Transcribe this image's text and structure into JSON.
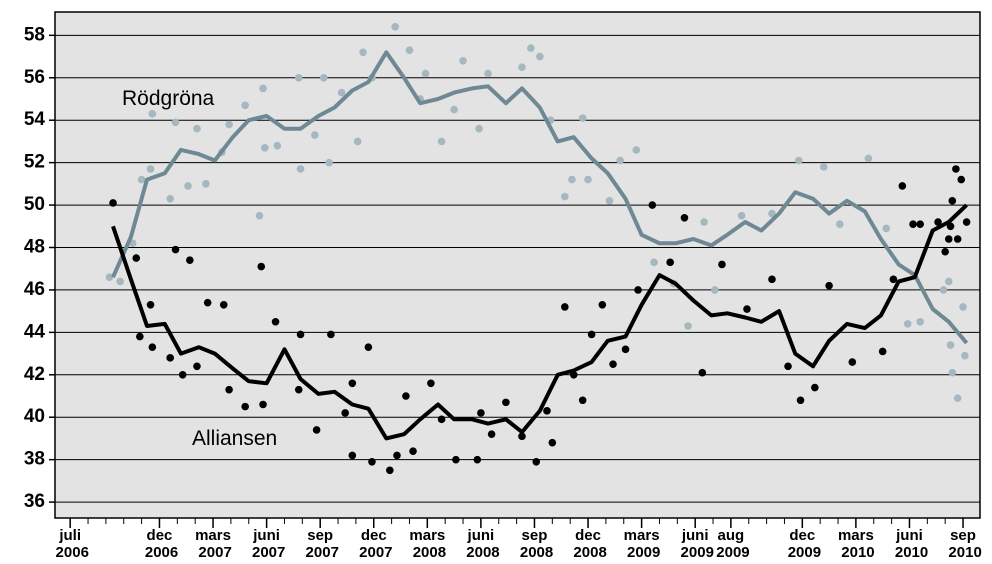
{
  "chart_data": {
    "type": "line",
    "xlim": [
      -0.85,
      50.95
    ],
    "ylim": [
      35.25,
      59.1
    ],
    "yticks": [
      36,
      38,
      40,
      42,
      44,
      46,
      48,
      50,
      52,
      54,
      56,
      58
    ],
    "xticks": [
      {
        "value": 0,
        "label": "juli 2006"
      },
      {
        "value": 5,
        "label": "dec 2006"
      },
      {
        "value": 8,
        "label": "mars 2007"
      },
      {
        "value": 11,
        "label": "juni 2007"
      },
      {
        "value": 14,
        "label": "sep 2007"
      },
      {
        "value": 17,
        "label": "dec 2007"
      },
      {
        "value": 20,
        "label": "mars 2008"
      },
      {
        "value": 23,
        "label": "juni 2008"
      },
      {
        "value": 26,
        "label": "sep 2008"
      },
      {
        "value": 29,
        "label": "dec 2008"
      },
      {
        "value": 32,
        "label": "mars 2009"
      },
      {
        "value": 35,
        "label": "juni 2009"
      },
      {
        "value": 37,
        "label": "aug 2009"
      },
      {
        "value": 41,
        "label": "dec 2009"
      },
      {
        "value": 44,
        "label": "mars 2010"
      },
      {
        "value": 47,
        "label": "juni 2010"
      },
      {
        "value": 50,
        "label": "sep 2010"
      }
    ],
    "grid": true,
    "series": [
      {
        "name": "Rödgröna",
        "color": "#6e8894",
        "x": [
          2.4,
          3.4,
          4.3,
          5.3,
          6.2,
          7.2,
          8.1,
          9.1,
          10.0,
          11.0,
          12.0,
          12.9,
          13.9,
          14.8,
          15.8,
          16.7,
          17.7,
          18.7,
          19.6,
          20.6,
          21.5,
          22.5,
          23.4,
          24.4,
          25.3,
          26.3,
          27.3,
          28.2,
          29.2,
          30.1,
          31.1,
          32.0,
          33.0,
          33.9,
          34.9,
          35.9,
          36.8,
          37.8,
          38.7,
          39.7,
          40.6,
          41.6,
          42.5,
          43.5,
          44.5,
          45.4,
          46.4,
          47.3,
          48.3,
          49.2,
          50.2
        ],
        "values": [
          46.6,
          48.5,
          51.2,
          51.5,
          52.6,
          52.4,
          52.1,
          53.2,
          54.0,
          54.2,
          53.6,
          53.6,
          54.2,
          54.6,
          55.4,
          55.8,
          57.2,
          56.0,
          54.8,
          55.0,
          55.3,
          55.5,
          55.6,
          54.8,
          55.5,
          54.6,
          53.0,
          53.2,
          52.2,
          51.5,
          50.3,
          48.6,
          48.2,
          48.2,
          48.4,
          48.1,
          48.6,
          49.2,
          48.8,
          49.6,
          50.6,
          50.3,
          49.6,
          50.2,
          49.7,
          48.4,
          47.2,
          46.7,
          45.1,
          44.5,
          43.5
        ],
        "points": {
          "color": "#a5b7bf",
          "x": [
            2.2,
            2.8,
            3.5,
            4.0,
            4.5,
            4.6,
            5.6,
            5.9,
            6.6,
            7.1,
            7.6,
            8.5,
            8.9,
            9.8,
            10.6,
            10.8,
            10.9,
            11.6,
            12.8,
            12.9,
            13.7,
            14.2,
            14.5,
            15.2,
            16.1,
            16.4,
            16.9,
            18.2,
            19.0,
            19.6,
            19.9,
            20.8,
            21.5,
            22.0,
            22.9,
            23.4,
            25.3,
            25.8,
            26.3,
            26.9,
            27.7,
            28.1,
            28.7,
            29.0,
            30.2,
            30.8,
            31.7,
            32.7,
            33.8,
            34.6,
            35.5,
            36.1,
            37.6,
            39.3,
            40.8,
            42.2,
            43.1,
            44.7,
            45.7,
            46.9,
            47.6,
            48.9,
            49.2,
            49.4,
            49.7,
            50.0,
            50.1,
            49.3
          ],
          "values": [
            46.6,
            46.4,
            48.2,
            51.2,
            51.7,
            54.3,
            50.3,
            53.9,
            50.9,
            53.6,
            51.0,
            52.5,
            53.8,
            54.7,
            49.5,
            55.5,
            52.7,
            52.8,
            56.0,
            51.7,
            53.3,
            56.0,
            52.0,
            55.3,
            53.0,
            57.2,
            56.0,
            58.4,
            57.3,
            55.0,
            56.2,
            53.0,
            54.5,
            56.8,
            53.6,
            56.2,
            56.5,
            57.4,
            57.0,
            54.0,
            50.4,
            51.2,
            54.1,
            51.2,
            50.2,
            52.1,
            52.6,
            47.3,
            46.3,
            44.3,
            49.2,
            46.0,
            49.5,
            49.6,
            52.1,
            51.8,
            49.1,
            52.2,
            48.9,
            44.4,
            44.5,
            46.0,
            46.4,
            42.1,
            40.9,
            45.2,
            42.9,
            43.4
          ]
        }
      },
      {
        "name": "Alliansen",
        "color": "#000000",
        "x": [
          2.4,
          3.4,
          4.3,
          5.3,
          6.2,
          7.2,
          8.1,
          9.1,
          10.0,
          11.0,
          12.0,
          12.9,
          13.9,
          14.8,
          15.8,
          16.7,
          17.7,
          18.7,
          19.6,
          20.6,
          21.5,
          22.5,
          23.4,
          24.4,
          25.3,
          26.3,
          27.3,
          28.2,
          29.2,
          30.1,
          31.1,
          32.0,
          33.0,
          33.9,
          34.9,
          35.9,
          36.8,
          37.8,
          38.7,
          39.7,
          40.6,
          41.6,
          42.5,
          43.5,
          44.5,
          45.4,
          46.4,
          47.3,
          48.3,
          49.2,
          50.2
        ],
        "values": [
          49.0,
          46.5,
          44.3,
          44.4,
          43.0,
          43.3,
          43.0,
          42.3,
          41.7,
          41.6,
          43.2,
          41.8,
          41.1,
          41.2,
          40.6,
          40.4,
          39.0,
          39.2,
          39.9,
          40.6,
          39.9,
          39.9,
          39.7,
          39.9,
          39.3,
          40.3,
          42.0,
          42.2,
          42.6,
          43.6,
          43.8,
          45.3,
          46.7,
          46.3,
          45.5,
          44.8,
          44.9,
          44.7,
          44.5,
          45.0,
          43.0,
          42.4,
          43.6,
          44.4,
          44.2,
          44.8,
          46.4,
          46.6,
          48.8,
          49.2,
          50.0
        ],
        "points": {
          "color": "#000000",
          "x": [
            2.4,
            3.7,
            3.9,
            4.5,
            4.6,
            5.6,
            5.9,
            6.3,
            6.7,
            7.1,
            7.7,
            8.6,
            8.9,
            9.8,
            10.7,
            10.8,
            11.5,
            12.8,
            12.9,
            13.8,
            14.6,
            15.4,
            15.8,
            16.7,
            15.8,
            16.9,
            17.9,
            18.3,
            18.8,
            19.2,
            20.2,
            20.8,
            21.6,
            22.8,
            23.0,
            23.6,
            24.4,
            25.3,
            26.1,
            26.7,
            27.0,
            27.7,
            28.2,
            28.7,
            29.2,
            29.8,
            30.4,
            31.1,
            31.8,
            32.6,
            33.6,
            34.4,
            35.4,
            36.5,
            37.9,
            39.3,
            40.2,
            40.9,
            41.7,
            42.5,
            43.8,
            45.5,
            46.1,
            46.6,
            47.2,
            47.6,
            48.6,
            49.0,
            49.3,
            49.6,
            49.7,
            49.9,
            50.2,
            49.4,
            49.2
          ],
          "values": [
            50.1,
            47.5,
            43.8,
            45.3,
            43.3,
            42.8,
            47.9,
            42.0,
            47.4,
            42.4,
            45.4,
            45.3,
            41.3,
            40.5,
            47.1,
            40.6,
            44.5,
            41.3,
            43.9,
            39.4,
            43.9,
            40.2,
            41.6,
            43.3,
            38.2,
            37.9,
            37.5,
            38.2,
            41.0,
            38.4,
            41.6,
            39.9,
            38.0,
            38.0,
            40.2,
            39.2,
            40.7,
            39.1,
            37.9,
            40.3,
            38.8,
            45.2,
            42.0,
            40.8,
            43.9,
            45.3,
            42.5,
            43.2,
            46.0,
            50.0,
            47.3,
            49.4,
            42.1,
            47.2,
            45.1,
            46.5,
            42.4,
            40.8,
            41.4,
            46.2,
            42.6,
            43.1,
            46.5,
            50.9,
            49.1,
            49.1,
            49.2,
            47.8,
            49.0,
            51.7,
            48.4,
            51.2,
            49.2,
            50.2,
            48.4
          ]
        }
      }
    ]
  }
}
